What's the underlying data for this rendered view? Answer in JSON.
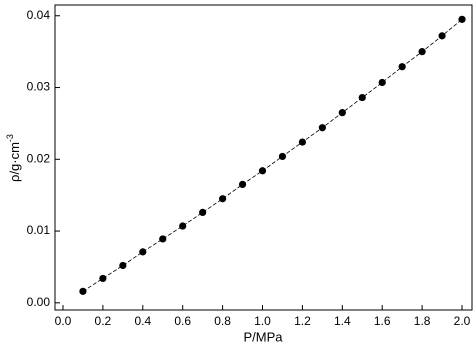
{
  "chart_data": {
    "type": "line",
    "x_label": "P/MPa",
    "y_label": {
      "main": "ρ/g·cm",
      "sup": "-3"
    },
    "x": [
      0.1,
      0.2,
      0.3,
      0.4,
      0.5,
      0.6,
      0.7,
      0.8,
      0.9,
      1.0,
      1.1,
      1.2,
      1.3,
      1.4,
      1.5,
      1.6,
      1.7,
      1.8,
      1.9,
      2.0
    ],
    "values": [
      0.0016,
      0.0034,
      0.0052,
      0.0071,
      0.0089,
      0.0107,
      0.0126,
      0.0145,
      0.0165,
      0.0184,
      0.0204,
      0.0224,
      0.0244,
      0.0265,
      0.0286,
      0.0307,
      0.0329,
      0.035,
      0.0372,
      0.0395
    ],
    "color": "#000000",
    "xlim": [
      -0.04,
      2.05
    ],
    "ylim": [
      -0.001,
      0.0415
    ],
    "xticks": [
      {
        "value": 0,
        "label": "0.0"
      },
      0.2,
      0.4,
      0.6,
      0.8,
      {
        "value": 1,
        "label": "1.0"
      },
      1.2,
      1.4,
      1.6,
      1.8,
      {
        "value": 2,
        "label": "2.0"
      }
    ],
    "yticks": [
      {
        "value": 0,
        "label": "0.00"
      },
      0.01,
      0.02,
      0.03,
      0.04
    ],
    "grid": false
  }
}
